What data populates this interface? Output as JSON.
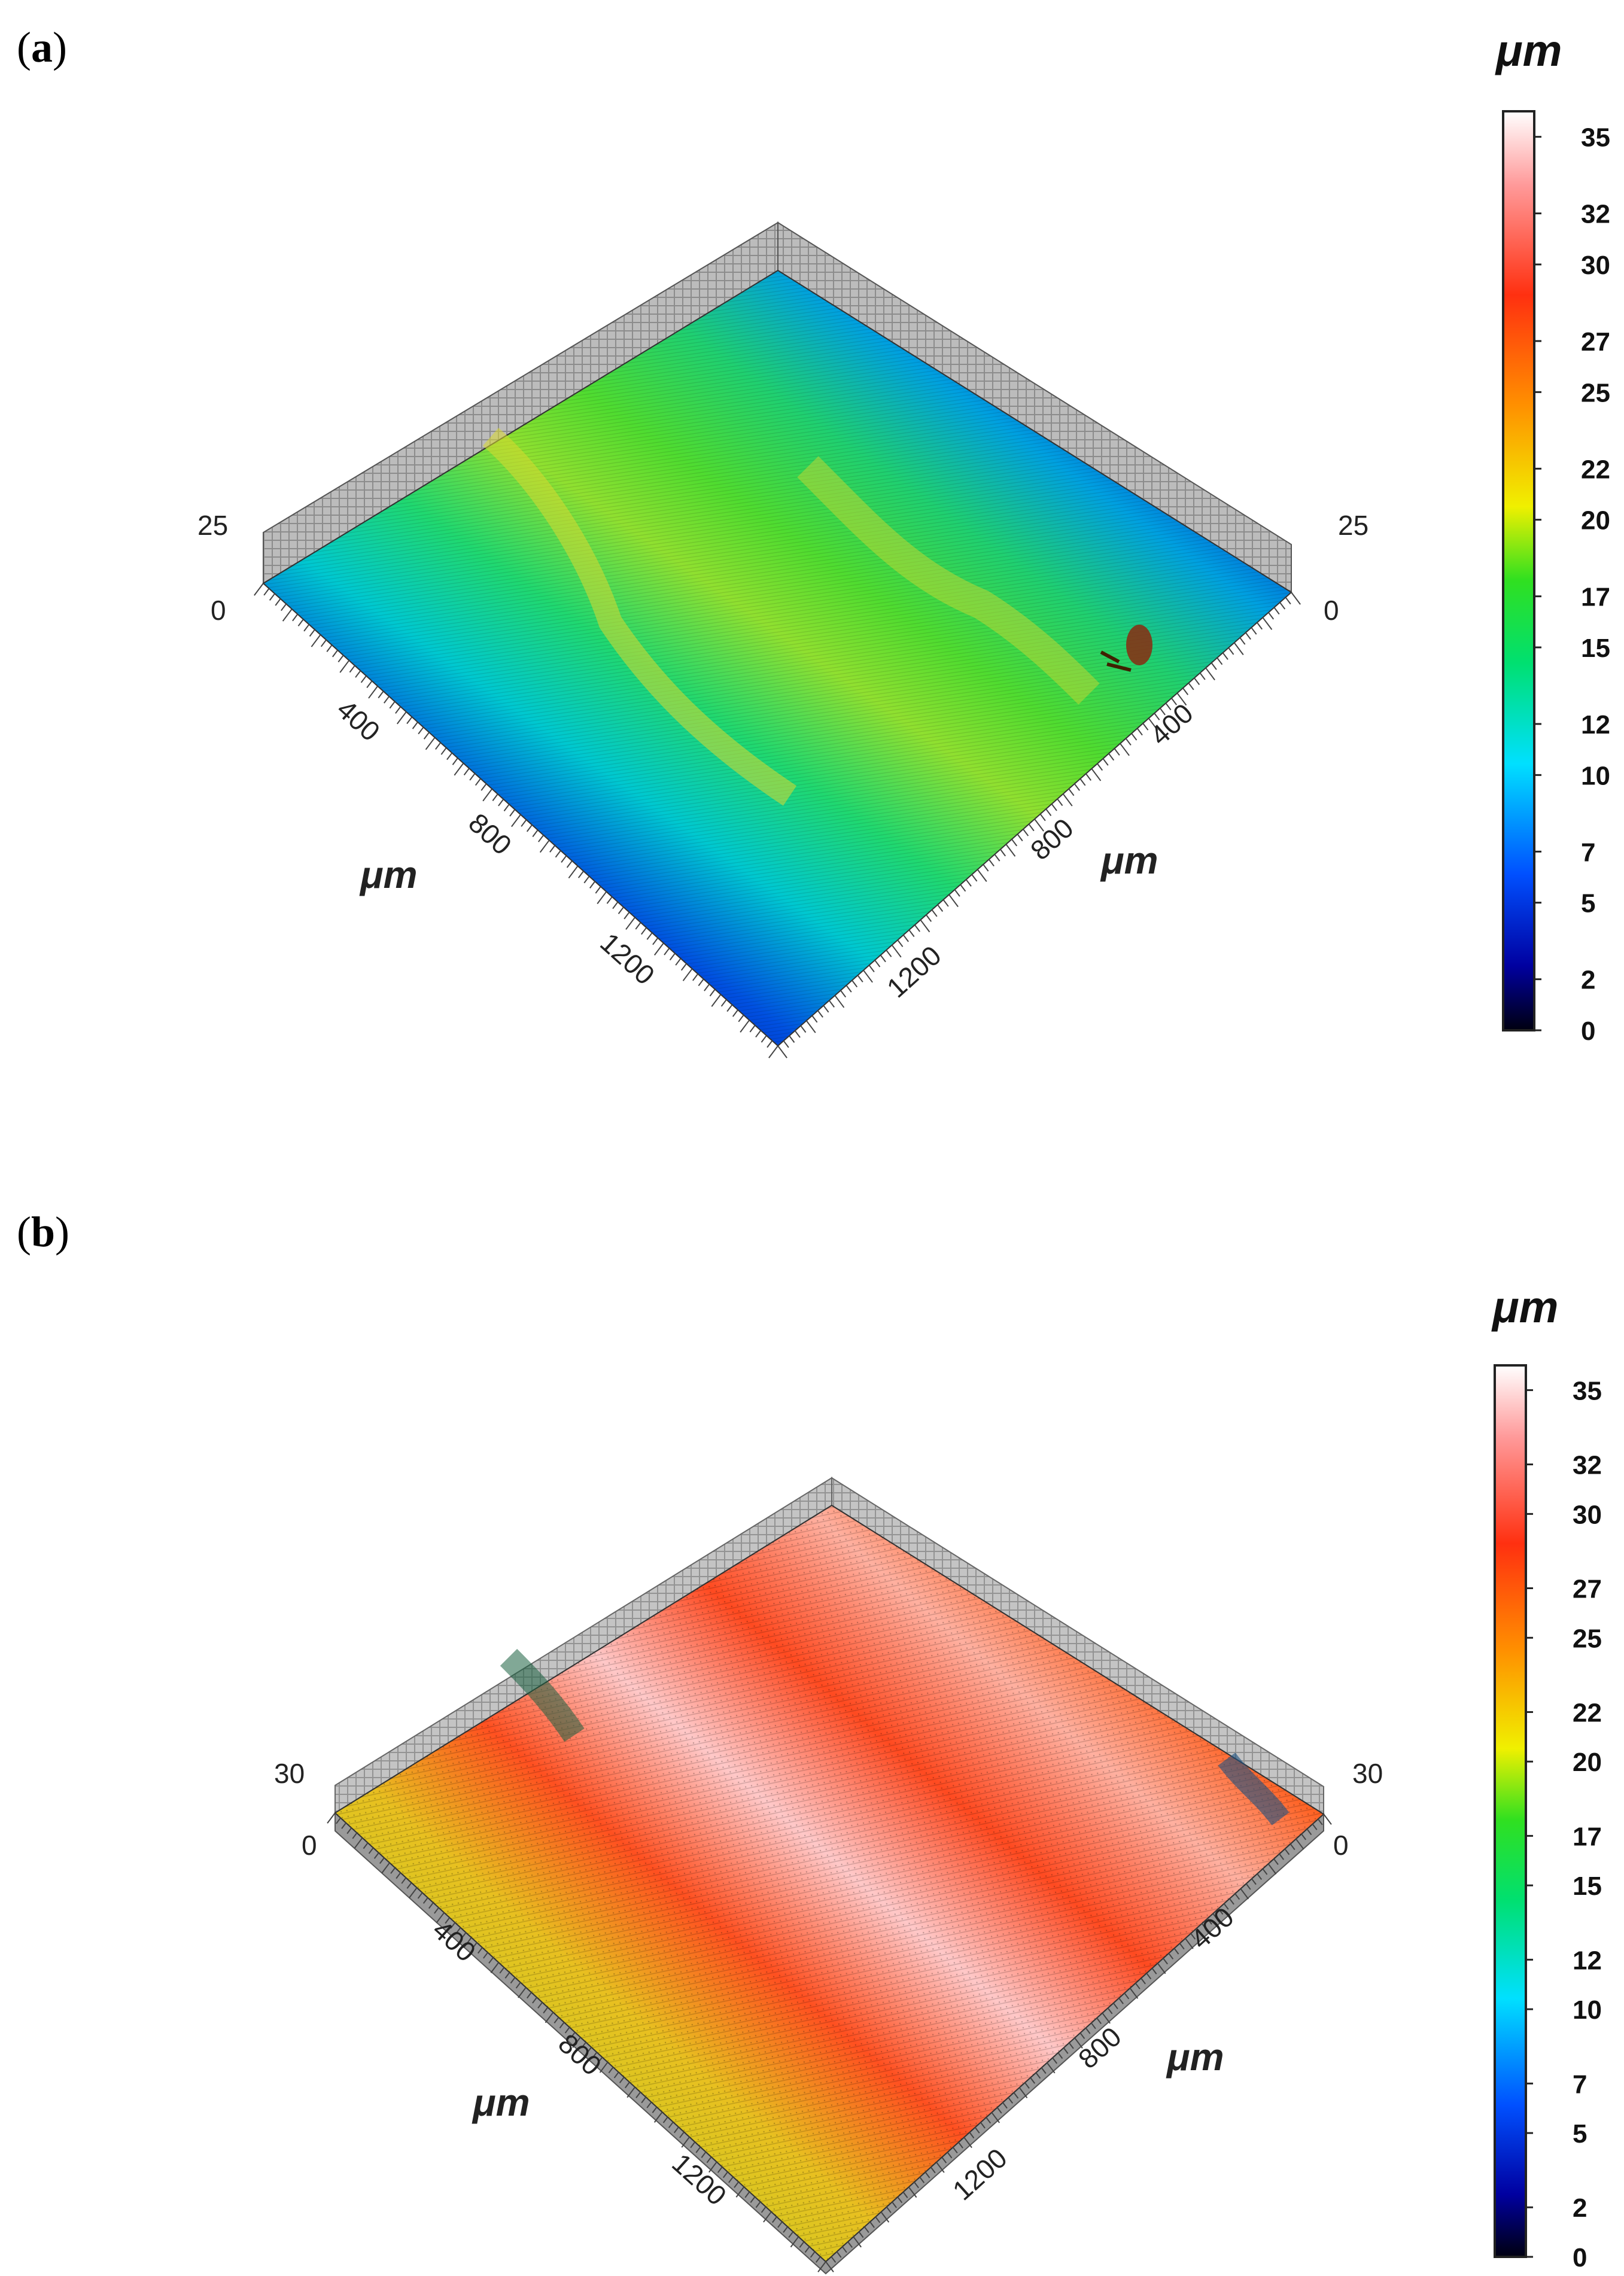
{
  "panels": [
    {
      "label": "a",
      "z_tick_labels": [
        "25",
        "0"
      ],
      "x_tick_labels": [
        "400",
        "800",
        "1200"
      ],
      "y_tick_labels": [
        "400",
        "800",
        "1200"
      ],
      "axis_unit": "μm",
      "colorbar_unit": "μm",
      "colorbar_ticks": [
        "35",
        "32",
        "30",
        "27",
        "25",
        "22",
        "20",
        "17",
        "15",
        "12",
        "10",
        "7",
        "5",
        "2",
        "0"
      ]
    },
    {
      "label": "b",
      "z_tick_labels": [
        "30",
        "0"
      ],
      "x_tick_labels": [
        "400",
        "800",
        "1200"
      ],
      "y_tick_labels": [
        "400",
        "800",
        "1200"
      ],
      "axis_unit": "μm",
      "colorbar_unit": "μm",
      "colorbar_ticks": [
        "35",
        "32",
        "30",
        "27",
        "25",
        "22",
        "20",
        "17",
        "15",
        "12",
        "10",
        "7",
        "5",
        "2",
        "0"
      ]
    }
  ],
  "chart_data": [
    {
      "type": "heatmap",
      "subtype": "3d-surface-topography",
      "panel": "a",
      "x_ticks": [
        0,
        400,
        800,
        1200
      ],
      "y_ticks": [
        0,
        400,
        800,
        1200
      ],
      "z_ticks": [
        0,
        25
      ],
      "colorbar_range": [
        0,
        36
      ],
      "colorbar_ticks": [
        0,
        2,
        5,
        7,
        10,
        12,
        15,
        17,
        20,
        22,
        25,
        27,
        30,
        32,
        35
      ],
      "colormap": [
        "#000010",
        "#0000a0",
        "#0060ff",
        "#00e0ff",
        "#00e060",
        "#20e020",
        "#f0f000",
        "#ff9000",
        "#ff3010",
        "#ff9090",
        "#ffffff"
      ],
      "dominant_surface_colors": [
        "#0018d0",
        "#00d0c0",
        "#30e030",
        "#b0e020"
      ]
    },
    {
      "type": "heatmap",
      "subtype": "3d-surface-topography",
      "panel": "b",
      "x_ticks": [
        0,
        400,
        800,
        1200
      ],
      "y_ticks": [
        0,
        400,
        800,
        1200
      ],
      "z_ticks": [
        0,
        30
      ],
      "colorbar_range": [
        0,
        36
      ],
      "colorbar_ticks": [
        0,
        2,
        5,
        7,
        10,
        12,
        15,
        17,
        20,
        22,
        25,
        27,
        30,
        32,
        35
      ],
      "colormap": [
        "#000010",
        "#0000a0",
        "#0060ff",
        "#00e0ff",
        "#00e060",
        "#20e020",
        "#f0f000",
        "#ff9000",
        "#ff3010",
        "#ff9090",
        "#ffffff"
      ],
      "dominant_surface_colors": [
        "#e8d020",
        "#ff4020",
        "#ffd0d0"
      ]
    }
  ]
}
